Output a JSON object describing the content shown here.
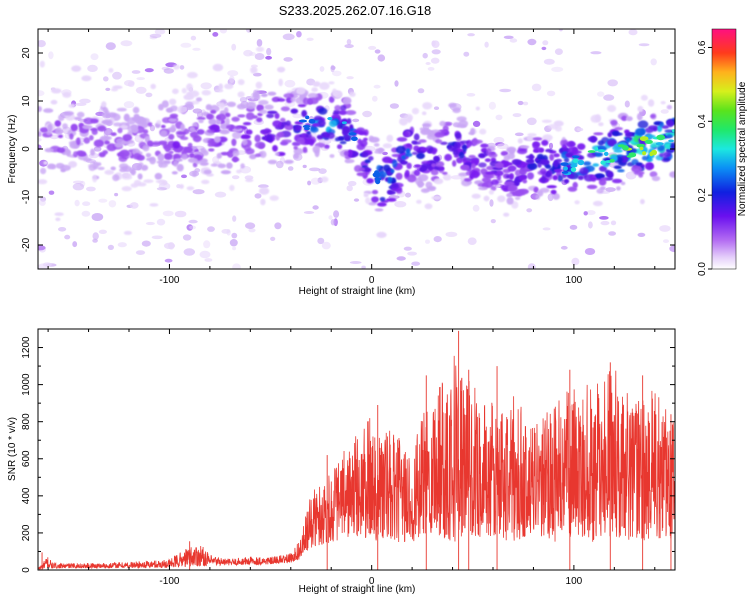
{
  "title": "S233.2025.262.07.16.G18",
  "colors": {
    "line": "#e8372f",
    "blob_cold": "#7a1bf0",
    "blob_mid": "#0b2bd6",
    "blob_hot": "#27e6d8",
    "faint": "#d9c4f6"
  },
  "chart_data": [
    {
      "type": "heatmap",
      "name": "spectrogram",
      "xlabel": "Height of straight line (km)",
      "ylabel": "Frequency (Hz)",
      "xlim": [
        -165,
        150
      ],
      "ylim": [
        -25,
        25
      ],
      "xticks": [
        -100,
        0,
        100
      ],
      "xtick_labels": [
        "-100",
        "0",
        "100"
      ],
      "yticks": [
        -20,
        -10,
        0,
        10,
        20
      ],
      "ytick_labels": [
        "-20",
        "-10",
        "0",
        "10",
        "20"
      ],
      "colorbar": {
        "label": "Normalized spectral amplitude",
        "range": [
          0.0,
          0.65
        ],
        "ticks": [
          0.0,
          0.2,
          0.4,
          0.6
        ],
        "tick_labels": [
          "0.0",
          "0.2",
          "0.4",
          "0.6"
        ]
      },
      "ridge": {
        "x": [
          -165,
          -140,
          -120,
          -100,
          -80,
          -60,
          -40,
          -30,
          -20,
          -12,
          -5,
          0,
          5,
          10,
          15,
          20,
          30,
          40,
          50,
          60,
          70,
          80,
          90,
          100,
          110,
          120,
          130,
          140,
          150
        ],
        "freq": [
          2,
          2,
          1,
          2,
          3,
          4,
          5,
          5,
          5,
          4,
          0,
          -4,
          -7,
          -6,
          -2,
          0,
          -3,
          2,
          -2,
          -4,
          -6,
          -3,
          -4,
          -3,
          -2,
          -1,
          0,
          1,
          3
        ],
        "intensity": [
          0.1,
          0.12,
          0.12,
          0.13,
          0.14,
          0.16,
          0.22,
          0.3,
          0.33,
          0.3,
          0.28,
          0.3,
          0.32,
          0.3,
          0.28,
          0.3,
          0.2,
          0.26,
          0.22,
          0.2,
          0.2,
          0.24,
          0.28,
          0.33,
          0.38,
          0.4,
          0.42,
          0.42,
          0.4
        ]
      }
    },
    {
      "type": "line",
      "name": "snr",
      "xlabel": "Height of straight line (km)",
      "ylabel": "SNR (10 * v/v)",
      "xlim": [
        -165,
        150
      ],
      "ylim": [
        0,
        1300
      ],
      "xticks": [
        -100,
        0,
        100
      ],
      "xtick_labels": [
        "-100",
        "0",
        "100"
      ],
      "yticks": [
        0,
        200,
        400,
        600,
        800,
        1000,
        1200
      ],
      "ytick_labels": [
        "0",
        "200",
        "400",
        "600",
        "800",
        "1000",
        "1200"
      ],
      "series": [
        {
          "name": "SNR",
          "color": "#e8372f",
          "envelope_x": [
            -165,
            -162,
            -160,
            -158,
            -155,
            -130,
            -110,
            -100,
            -90,
            -85,
            -80,
            -70,
            -60,
            -50,
            -40,
            -35,
            -30,
            -20,
            -10,
            0,
            10,
            20,
            30,
            40,
            50,
            60,
            70,
            80,
            90,
            100,
            110,
            120,
            130,
            140,
            150
          ],
          "envelope_low": [
            5,
            5,
            5,
            8,
            10,
            10,
            12,
            12,
            20,
            20,
            25,
            25,
            28,
            30,
            40,
            60,
            120,
            150,
            180,
            160,
            150,
            150,
            200,
            150,
            180,
            170,
            150,
            200,
            150,
            180,
            150,
            180,
            150,
            170,
            160
          ],
          "envelope_high": [
            10,
            50,
            85,
            40,
            35,
            40,
            50,
            60,
            130,
            150,
            80,
            60,
            75,
            70,
            90,
            180,
            420,
            550,
            700,
            850,
            750,
            650,
            1000,
            1250,
            1000,
            900,
            950,
            780,
            900,
            1000,
            1000,
            1100,
            900,
            1000,
            850
          ],
          "peaks": [
            {
              "x": -163,
              "y": 95
            },
            {
              "x": -90,
              "y": 155
            },
            {
              "x": -22,
              "y": 620
            },
            {
              "x": 3,
              "y": 890
            },
            {
              "x": 27,
              "y": 1050
            },
            {
              "x": 43,
              "y": 1290
            },
            {
              "x": 48,
              "y": 1080
            },
            {
              "x": 62,
              "y": 1100
            },
            {
              "x": 98,
              "y": 1080
            },
            {
              "x": 118,
              "y": 1120
            },
            {
              "x": 134,
              "y": 1050
            },
            {
              "x": 148,
              "y": 840
            }
          ]
        }
      ]
    }
  ]
}
